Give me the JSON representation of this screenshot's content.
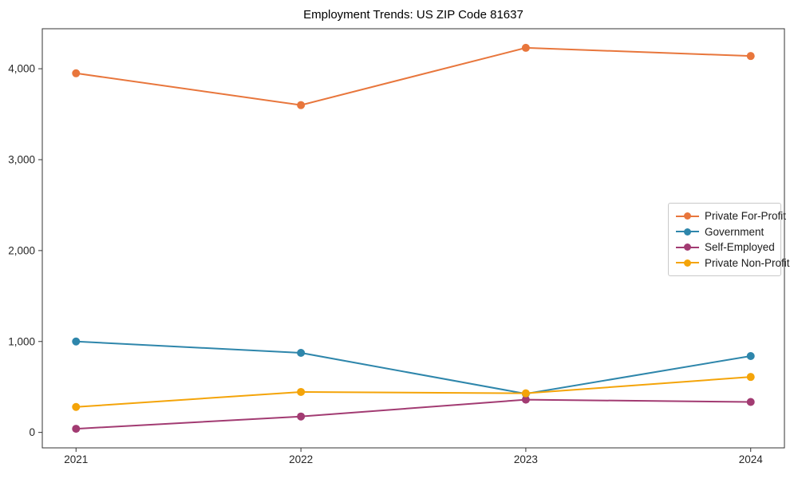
{
  "title": "Employment Trends: US ZIP Code 81637",
  "chart_data": {
    "type": "line",
    "title": "Employment Trends: US ZIP Code 81637",
    "x": [
      2021,
      2022,
      2023,
      2024
    ],
    "categories": [
      "2021",
      "2022",
      "2023",
      "2024"
    ],
    "series": [
      {
        "name": "Private For-Profit",
        "color": "#e8763c",
        "values": [
          3950,
          3600,
          4230,
          4140
        ]
      },
      {
        "name": "Government",
        "color": "#2e86ab",
        "values": [
          1000,
          875,
          425,
          840
        ]
      },
      {
        "name": "Self-Employed",
        "color": "#a23b72",
        "values": [
          40,
          175,
          360,
          335
        ]
      },
      {
        "name": "Private Non-Profit",
        "color": "#f4a409",
        "values": [
          280,
          445,
          430,
          610
        ]
      }
    ],
    "yticks": [
      0,
      1000,
      2000,
      3000,
      4000
    ],
    "ytick_labels": [
      "0",
      "1,000",
      "2,000",
      "3,000",
      "4,000"
    ],
    "ylim": [
      -170,
      4440
    ],
    "xlim": [
      2020.85,
      2024.15
    ],
    "xlabel": "",
    "ylabel": "",
    "grid": false,
    "legend_position": "center right",
    "marker": "circle",
    "axis_color": "#333333",
    "text_color": "#262626",
    "background_color": "#ffffff"
  }
}
